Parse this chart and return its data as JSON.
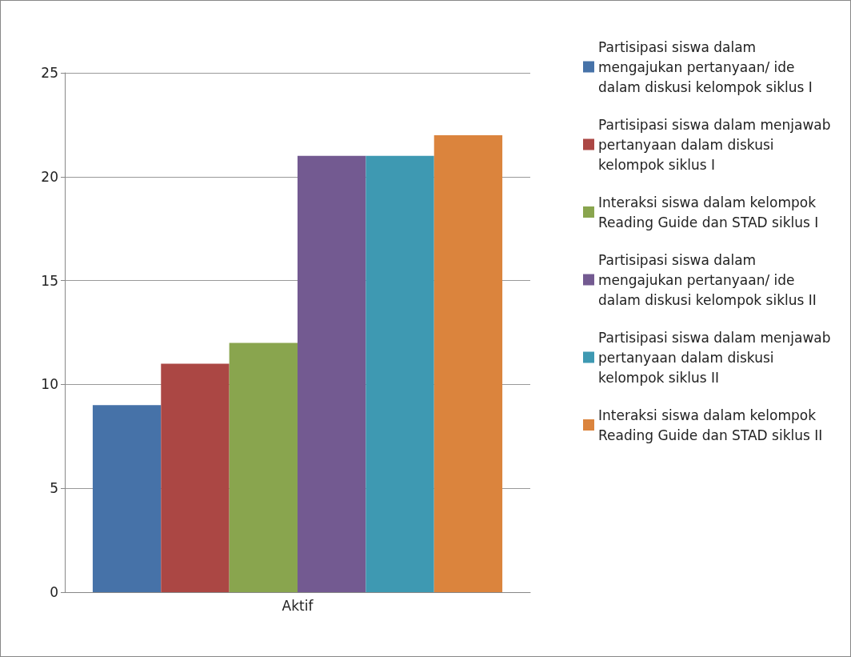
{
  "chart_data": {
    "type": "bar",
    "categories": [
      "Aktif"
    ],
    "series": [
      {
        "name": "Partisipasi siswa dalam mengajukan pertanyaan/ ide dalam diskusi kelompok siklus I",
        "color": "#4672a8",
        "values": [
          9
        ]
      },
      {
        "name": "Partisipasi siswa dalam menjawab pertanyaan dalam diskusi kelompok siklus I",
        "color": "#ab4744",
        "values": [
          11
        ]
      },
      {
        "name": "Interaksi siswa dalam kelompok Reading Guide dan STAD siklus I",
        "color": "#89a54e",
        "values": [
          12
        ]
      },
      {
        "name": "Partisipasi siswa dalam mengajukan pertanyaan/ ide dalam diskusi kelompok siklus II",
        "color": "#735a91",
        "values": [
          21
        ]
      },
      {
        "name": "Partisipasi siswa dalam menjawab pertanyaan dalam diskusi kelompok siklus II",
        "color": "#3e99b2",
        "values": [
          21
        ]
      },
      {
        "name": "Interaksi siswa dalam kelompok Reading Guide dan STAD siklus II",
        "color": "#db843d",
        "values": [
          22
        ]
      }
    ],
    "ylim": [
      0,
      25
    ],
    "yticks": [
      0,
      5,
      10,
      15,
      20,
      25
    ],
    "grid": "y",
    "legend": "right"
  }
}
